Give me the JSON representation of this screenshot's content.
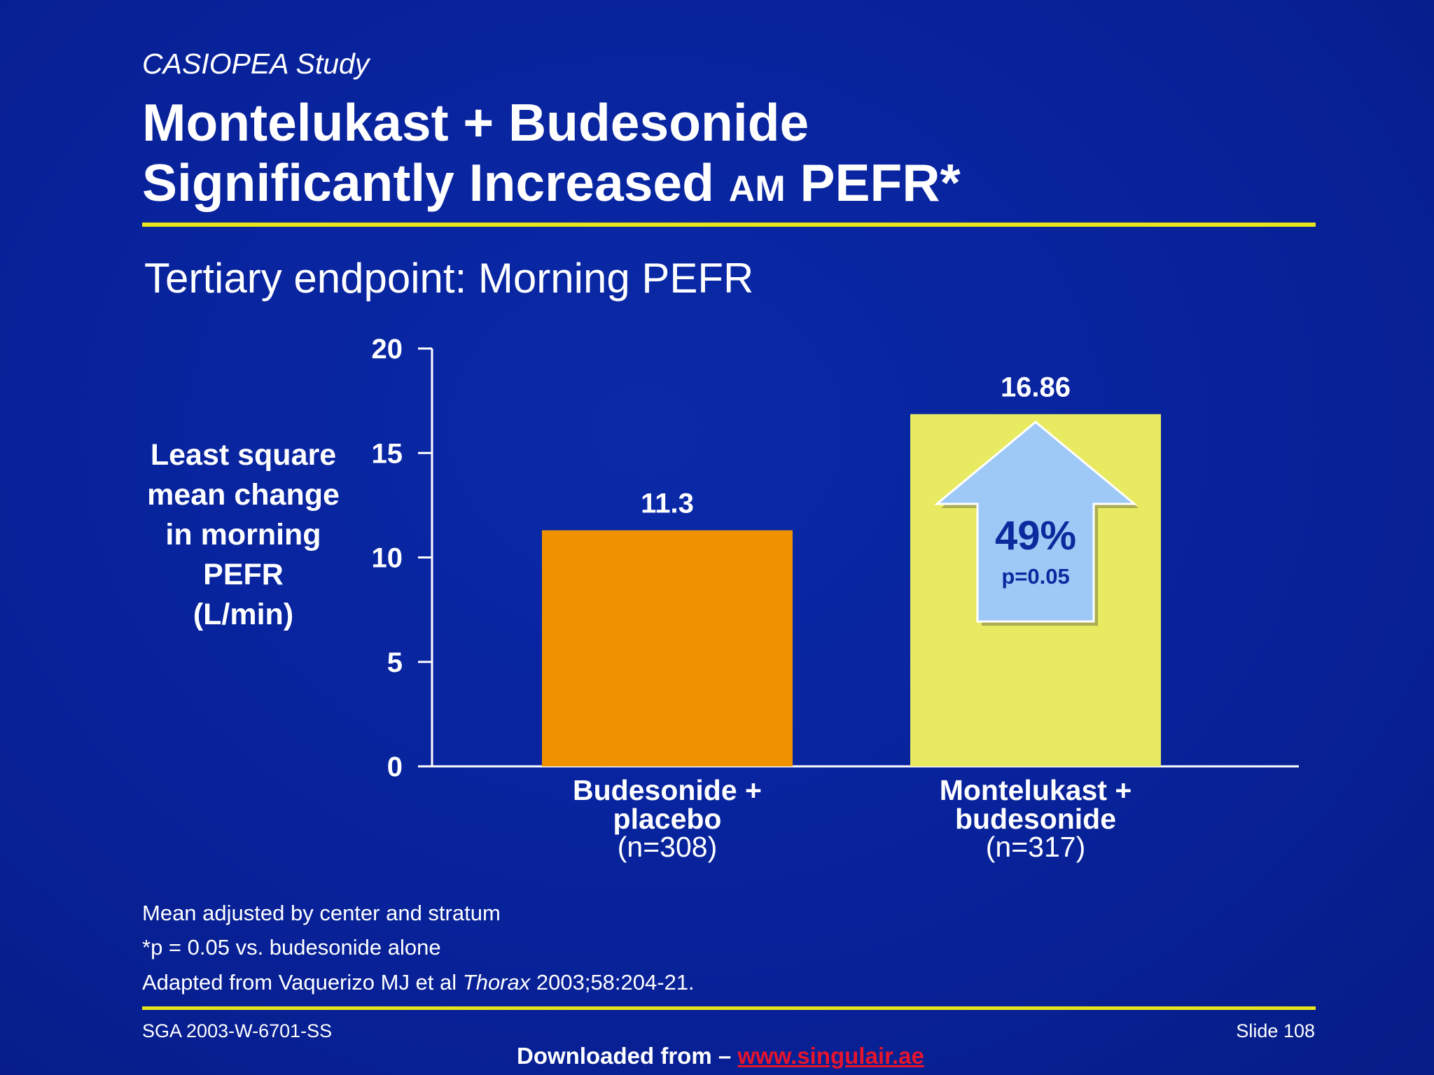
{
  "header": {
    "study": "CASIOPEA Study",
    "title_line1": "Montelukast + Budesonide",
    "title_line2_a": "Significantly Increased ",
    "title_line2_sc": "AM",
    "title_line2_b": " PEFR*",
    "subtitle": "Tertiary endpoint: Morning PEFR"
  },
  "ylabel_lines": [
    "Least square",
    "mean change",
    "in morning",
    "PEFR",
    "(L/min)"
  ],
  "chart_data": {
    "type": "bar",
    "categories": [
      {
        "line1": "Budesonide +",
        "line2": "placebo",
        "line3": "(n=308)"
      },
      {
        "line1": "Montelukast +",
        "line2": "budesonide",
        "line3": "(n=317)"
      }
    ],
    "values": [
      11.3,
      16.86
    ],
    "value_labels": [
      "11.3",
      "16.86"
    ],
    "bar_colors": [
      "#ee9200",
      "#e8ea62"
    ],
    "ylim": [
      0,
      20
    ],
    "yticks": [
      0,
      5,
      10,
      15,
      20
    ],
    "grid": false,
    "annotation": {
      "percent": "49%",
      "pvalue": "p=0.05",
      "arrow_color": "#9ec8f6",
      "text_color": "#0b2a9e"
    }
  },
  "footnotes": {
    "line1": "Mean adjusted by center and stratum",
    "line2": "*p = 0.05 vs. budesonide alone",
    "line3_a": "Adapted from Vaquerizo MJ et al ",
    "line3_journal": "Thorax",
    "line3_b": " 2003;58:204-21."
  },
  "footer": {
    "code": "SGA 2003-W-6701-SS",
    "slide": "Slide 108",
    "download_prefix": "Downloaded from – ",
    "download_link": "www.singulair.ae"
  }
}
